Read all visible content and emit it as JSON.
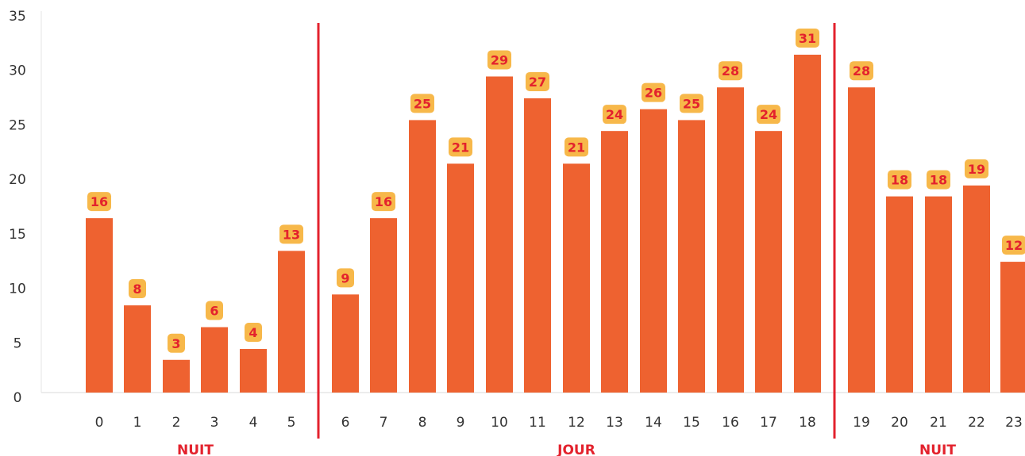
{
  "chart_data": {
    "type": "bar",
    "title": "",
    "xlabel": "",
    "ylabel": "",
    "categories": [
      "0",
      "1",
      "2",
      "3",
      "4",
      "5",
      "6",
      "7",
      "8",
      "9",
      "10",
      "11",
      "12",
      "13",
      "14",
      "15",
      "16",
      "17",
      "18",
      "19",
      "20",
      "21",
      "22",
      "23"
    ],
    "values": [
      16,
      8,
      3,
      6,
      4,
      13,
      9,
      16,
      25,
      21,
      29,
      27,
      21,
      24,
      26,
      25,
      28,
      24,
      31,
      28,
      18,
      18,
      19,
      12
    ],
    "ylim": [
      0,
      35
    ],
    "yticks": [
      "0",
      "5",
      "10",
      "15",
      "20",
      "25",
      "30",
      "35"
    ],
    "grid": false,
    "periods": [
      {
        "label": "NUIT",
        "from": 0,
        "to": 5
      },
      {
        "label": "JOUR",
        "from": 6,
        "to": 18
      },
      {
        "label": "NUIT",
        "from": 19,
        "to": 23
      }
    ],
    "colors": {
      "bar": "#ee6230",
      "label_bg": "#f7b84a",
      "label_text": "#e3222d",
      "separator": "#e3222d",
      "axis": "#e6e6e6",
      "tick_text": "#333333"
    }
  }
}
